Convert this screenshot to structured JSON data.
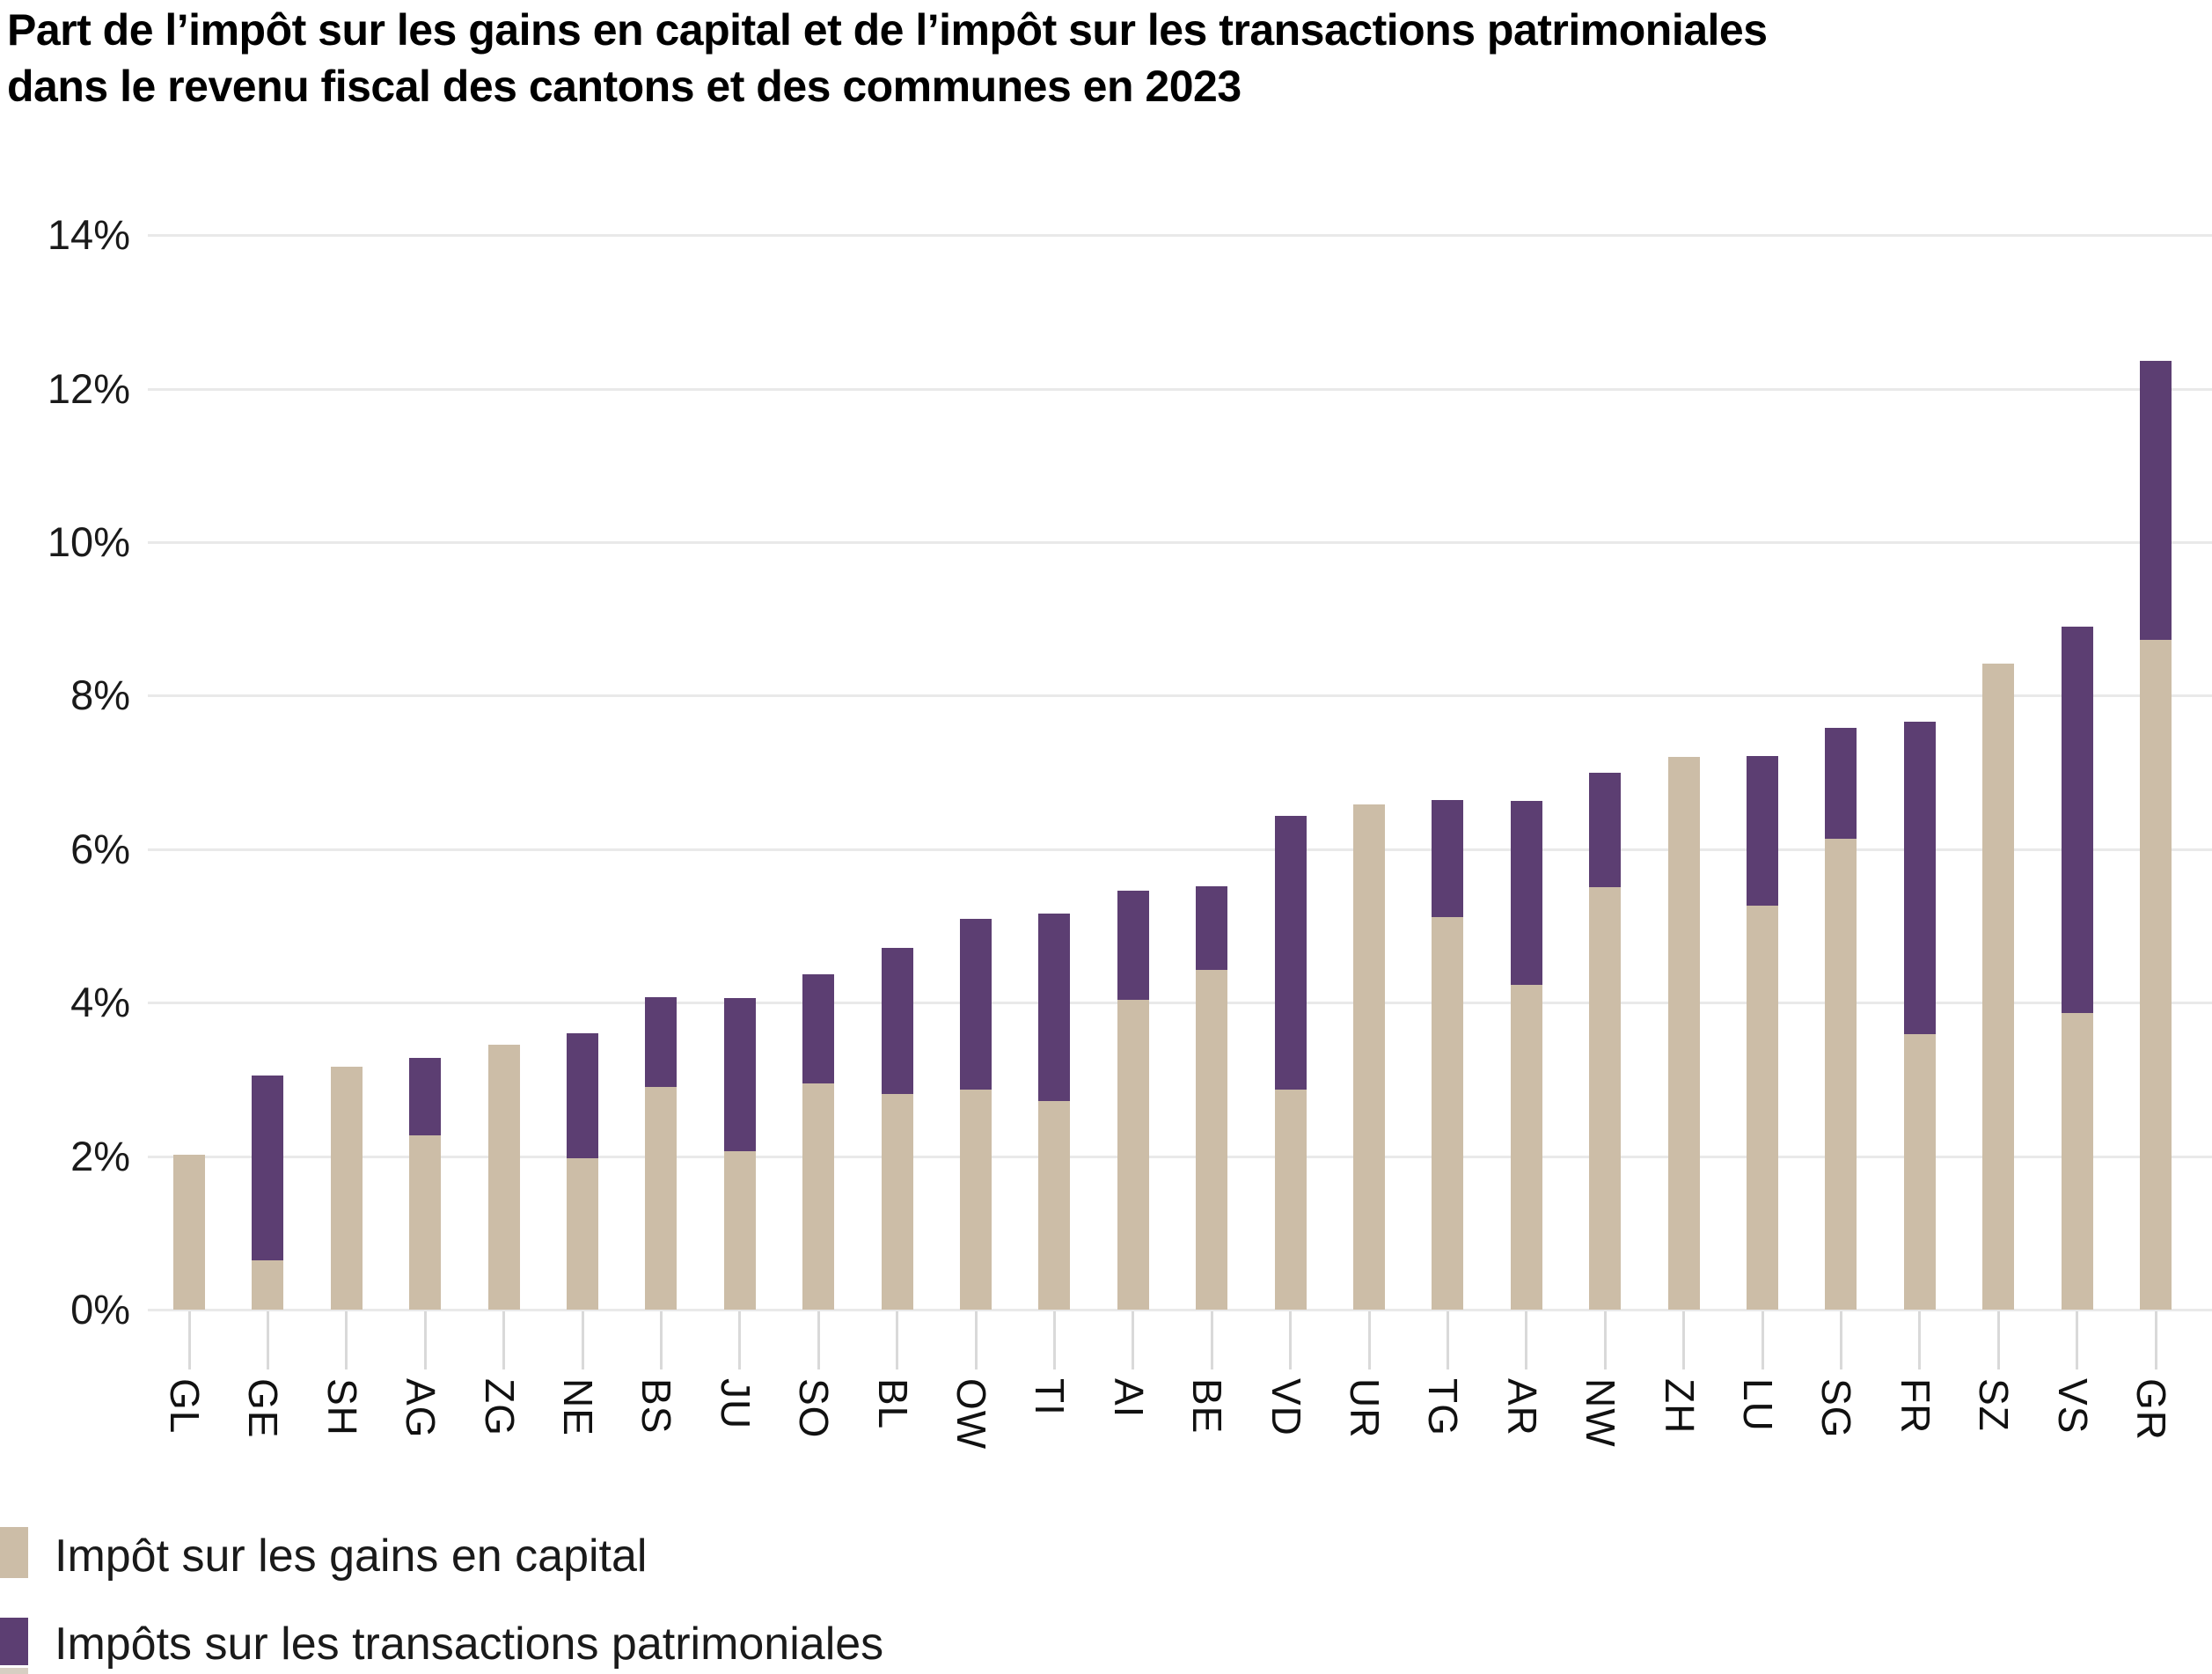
{
  "title": {
    "line1": "Part de l’impôt sur les gains en capital et de l’impôt sur les transactions patrimoniales",
    "line2": "dans le revenu fiscal des cantons et des communes en 2023"
  },
  "y_axis": {
    "tick_labels": [
      "0%",
      "2%",
      "4%",
      "6%",
      "8%",
      "10%",
      "12%",
      "14%"
    ],
    "tick_values": [
      0,
      2,
      4,
      6,
      8,
      10,
      12,
      14
    ]
  },
  "legend": {
    "items": [
      {
        "label": "Impôt sur les gains en capital",
        "color": "#ccbda7"
      },
      {
        "label": "Impôts sur les transactions patrimoniales",
        "color": "#5c3e72"
      }
    ],
    "cutoff_swatch_color": "#d7cfc3"
  },
  "colors": {
    "capital_gains": "#ccbda7",
    "transactions": "#5c3e72",
    "gridline": "#e9e9e9",
    "tick": "#d9d9d9"
  },
  "chart_data": {
    "type": "bar",
    "stacked": true,
    "title": "Part de l’impôt sur les gains en capital et de l’impôt sur les transactions patrimoniales dans le revenu fiscal des cantons et des communes en 2023",
    "categories": [
      "GL",
      "GE",
      "SH",
      "AG",
      "ZG",
      "NE",
      "BS",
      "JU",
      "SO",
      "BL",
      "OW",
      "TI",
      "AI",
      "BE",
      "VD",
      "UR",
      "TG",
      "AR",
      "NW",
      "ZH",
      "LU",
      "SG",
      "FR",
      "SZ",
      "VS",
      "GR"
    ],
    "series": [
      {
        "name": "Impôt sur les gains en capital",
        "color": "#ccbda7",
        "values": [
          2.02,
          0.64,
          3.16,
          2.27,
          3.45,
          1.97,
          2.9,
          2.06,
          2.95,
          2.81,
          2.87,
          2.72,
          4.04,
          4.43,
          2.87,
          6.58,
          5.12,
          4.23,
          5.51,
          7.2,
          5.26,
          6.13,
          3.59,
          8.42,
          3.87,
          8.73
        ]
      },
      {
        "name": "Impôts sur les transactions patrimoniales",
        "color": "#5c3e72",
        "values": [
          0,
          2.41,
          0,
          1.01,
          0,
          1.63,
          1.17,
          2.0,
          1.42,
          1.9,
          2.23,
          2.44,
          1.42,
          1.09,
          3.57,
          0,
          1.52,
          2.4,
          1.49,
          0,
          1.95,
          1.45,
          4.07,
          0,
          5.04,
          3.64
        ]
      }
    ],
    "totals": [
      2.02,
      3.05,
      3.16,
      3.28,
      3.45,
      3.6,
      4.07,
      4.06,
      4.37,
      4.71,
      5.1,
      5.16,
      5.46,
      5.52,
      6.44,
      6.58,
      6.64,
      6.63,
      7.0,
      7.2,
      7.21,
      7.58,
      7.66,
      8.42,
      8.91,
      12.37
    ],
    "xlabel": "",
    "ylabel": "",
    "unit": "%",
    "ylim": [
      0,
      14
    ],
    "y_step": 2,
    "grid": true,
    "legend_position": "bottom-left"
  }
}
